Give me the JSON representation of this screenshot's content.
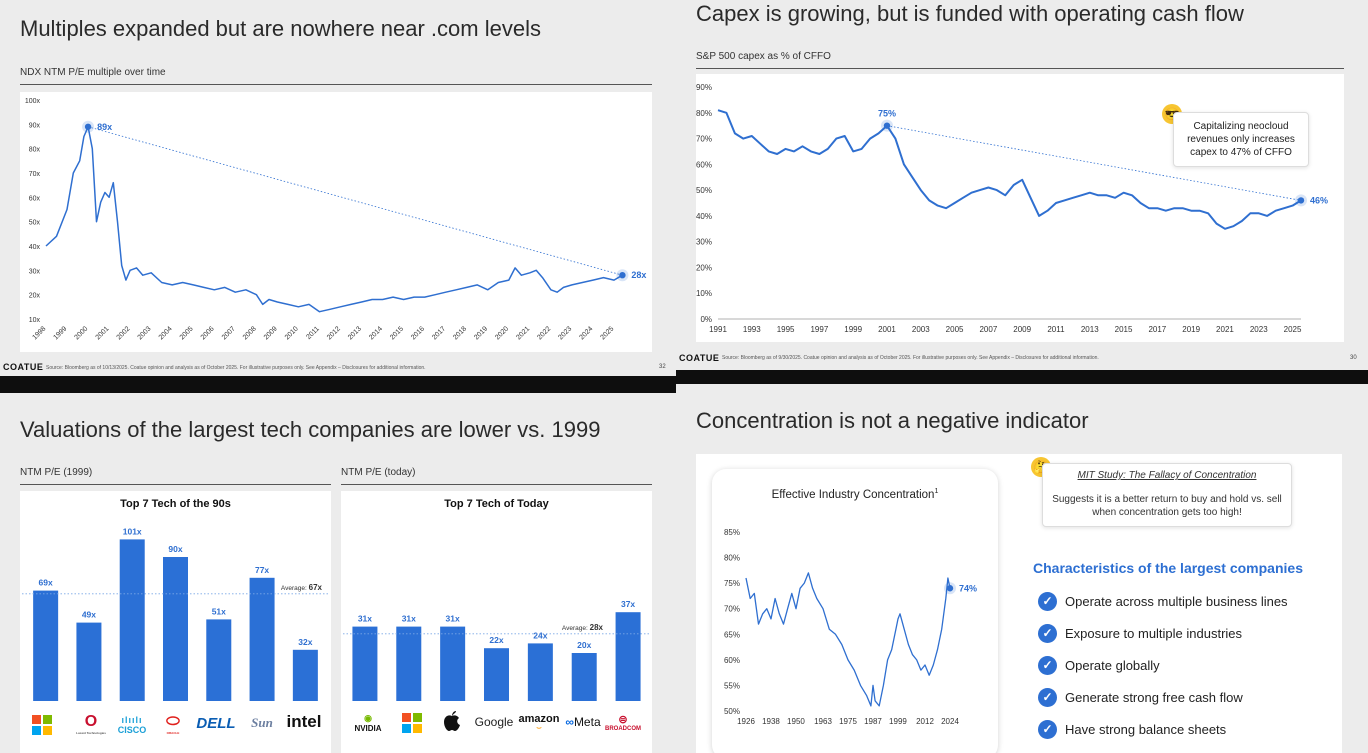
{
  "colors": {
    "line": "#2f6fd0",
    "bar": "#2b70d6",
    "label": "#2f6fd0"
  },
  "p1": {
    "title": "Multiples expanded but are nowhere near .com levels",
    "subtitle": "NDX NTM P/E multiple over time",
    "brand": "COATUE",
    "footer": "Source: Bloomberg as of 10/13/2025. Coatue opinion and analysis as of October 2025. For illustrative purposes only. See Appendix – Disclosures for additional information.",
    "page": "32"
  },
  "p2": {
    "title": "Capex is growing, but is funded with operating cash flow",
    "subtitle": "S&P 500 capex as % of CFFO",
    "callout": "Capitalizing neocloud revenues only increases capex to 47% of CFFO",
    "emoji_icon": "sunglasses-face-icon",
    "brand": "COATUE",
    "footer": "Source: Bloomberg as of 9/30/2025. Coatue opinion and analysis as of October 2025. For illustrative purposes only. See Appendix – Disclosures for additional information.",
    "page": "30"
  },
  "p3": {
    "title": "Valuations of the largest tech companies are lower vs. 1999",
    "left_sub": "NTM P/E (1999)",
    "right_sub": "NTM P/E (today)",
    "logos90": [
      "Microsoft",
      "Lucent Technologies",
      "CISCO",
      "ORACLE",
      "DELL",
      "Sun",
      "intel"
    ],
    "logosToday": [
      "NVIDIA",
      "Microsoft",
      "Apple",
      "Google",
      "amazon",
      "Meta",
      "BROADCOM"
    ]
  },
  "p4": {
    "title": "Concentration is not a negative indicator",
    "callout_title": "MIT Study: The Fallacy of Concentration",
    "callout_text": "Suggests it is a better return to buy and hold vs. sell when concentration gets too high!",
    "emoji_icon": "thinking-face-icon",
    "char_title": "Characteristics of the largest companies",
    "items": [
      "Operate across multiple business lines",
      "Exposure to multiple industries",
      "Operate globally",
      "Generate strong free cash flow",
      "Have strong balance sheets"
    ]
  },
  "chart_data": [
    {
      "type": "line",
      "title": "NDX NTM P/E multiple over time",
      "x": [
        1998,
        1998.5,
        1999,
        1999.3,
        1999.6,
        1999.8,
        2000,
        2000.2,
        2000.4,
        2000.6,
        2000.8,
        2001,
        2001.2,
        2001.4,
        2001.6,
        2001.8,
        2002,
        2002.3,
        2002.6,
        2003,
        2003.5,
        2004,
        2004.5,
        2005,
        2005.5,
        2006,
        2006.5,
        2007,
        2007.5,
        2008,
        2008.3,
        2008.6,
        2009,
        2009.5,
        2010,
        2010.5,
        2011,
        2011.5,
        2012,
        2012.5,
        2013,
        2013.5,
        2014,
        2014.5,
        2015,
        2015.5,
        2016,
        2016.5,
        2017,
        2017.5,
        2018,
        2018.5,
        2019,
        2019.5,
        2020,
        2020.3,
        2020.6,
        2021,
        2021.3,
        2021.6,
        2022,
        2022.3,
        2022.6,
        2023,
        2023.5,
        2024,
        2024.5,
        2025,
        2025.4
      ],
      "y": [
        40,
        44,
        55,
        70,
        75,
        85,
        89,
        80,
        50,
        58,
        62,
        60,
        66,
        50,
        32,
        26,
        30,
        31,
        28,
        29,
        25,
        24,
        25,
        24,
        23,
        22,
        23,
        21,
        22,
        20,
        16,
        18,
        17,
        16,
        15,
        16,
        13,
        14,
        15,
        16,
        17,
        18,
        18,
        19,
        18,
        19,
        19,
        20,
        21,
        22,
        23,
        24,
        22,
        25,
        26,
        31,
        28,
        29,
        30,
        27,
        22,
        21,
        23,
        24,
        25,
        26,
        27,
        26,
        28
      ],
      "ylim": [
        10,
        100
      ],
      "yticks": [
        "10x",
        "20x",
        "30x",
        "40x",
        "50x",
        "60x",
        "70x",
        "80x",
        "90x",
        "100x"
      ],
      "xticks": [
        "1998",
        "1999",
        "2000",
        "2001",
        "2002",
        "2003",
        "2004",
        "2005",
        "2006",
        "2007",
        "2008",
        "2009",
        "2010",
        "2011",
        "2012",
        "2013",
        "2014",
        "2015",
        "2016",
        "2017",
        "2018",
        "2019",
        "2020",
        "2021",
        "2022",
        "2023",
        "2024",
        "2025"
      ],
      "annotations": [
        "89x",
        "28x"
      ]
    },
    {
      "type": "line",
      "title": "S&P 500 capex as % of CFFO",
      "x": [
        1991,
        1991.5,
        1992,
        1992.5,
        1993,
        1993.5,
        1994,
        1994.5,
        1995,
        1995.5,
        1996,
        1996.5,
        1997,
        1997.5,
        1998,
        1998.5,
        1999,
        1999.5,
        2000,
        2000.5,
        2001,
        2001.5,
        2002,
        2002.5,
        2003,
        2003.5,
        2004,
        2004.5,
        2005,
        2005.5,
        2006,
        2006.5,
        2007,
        2007.5,
        2008,
        2008.5,
        2009,
        2009.5,
        2010,
        2010.5,
        2011,
        2011.5,
        2012,
        2012.5,
        2013,
        2013.5,
        2014,
        2014.5,
        2015,
        2015.5,
        2016,
        2016.5,
        2017,
        2017.5,
        2018,
        2018.5,
        2019,
        2019.5,
        2020,
        2020.5,
        2021,
        2021.5,
        2022,
        2022.5,
        2023,
        2023.5,
        2024,
        2024.5,
        2025,
        2025.5
      ],
      "y": [
        81,
        80,
        72,
        70,
        71,
        68,
        65,
        64,
        66,
        65,
        67,
        65,
        64,
        66,
        70,
        71,
        65,
        66,
        70,
        72,
        75,
        70,
        60,
        55,
        50,
        46,
        44,
        43,
        45,
        47,
        49,
        50,
        51,
        50,
        48,
        52,
        54,
        47,
        40,
        42,
        45,
        46,
        47,
        48,
        49,
        48,
        48,
        47,
        49,
        48,
        45,
        43,
        43,
        42,
        43,
        43,
        42,
        42,
        41,
        37,
        35,
        36,
        38,
        41,
        41,
        40,
        42,
        43,
        44,
        46
      ],
      "ylim": [
        0,
        90
      ],
      "yticks": [
        "0%",
        "10%",
        "20%",
        "30%",
        "40%",
        "50%",
        "60%",
        "70%",
        "80%",
        "90%"
      ],
      "xticks": [
        "1991",
        "1993",
        "1995",
        "1997",
        "1999",
        "2001",
        "2003",
        "2005",
        "2007",
        "2009",
        "2011",
        "2013",
        "2015",
        "2017",
        "2019",
        "2021",
        "2023",
        "2025"
      ],
      "annotations": [
        "75%",
        "46%"
      ]
    },
    {
      "type": "bar",
      "title": "Top 7 Tech of the 90s",
      "categories": [
        "Microsoft",
        "Lucent",
        "Cisco",
        "Oracle",
        "Dell",
        "Sun",
        "Intel"
      ],
      "values": [
        69,
        49,
        101,
        90,
        51,
        77,
        32
      ],
      "labels": [
        "69x",
        "49x",
        "101x",
        "90x",
        "51x",
        "77x",
        "32x"
      ],
      "average": 67,
      "average_label": "Average:",
      "average_value": "67x"
    },
    {
      "type": "bar",
      "title": "Top 7 Tech of Today",
      "categories": [
        "Nvidia",
        "Microsoft",
        "Apple",
        "Google",
        "Amazon",
        "Meta",
        "Broadcom"
      ],
      "values": [
        31,
        31,
        31,
        22,
        24,
        20,
        37
      ],
      "labels": [
        "31x",
        "31x",
        "31x",
        "22x",
        "24x",
        "20x",
        "37x"
      ],
      "average": 28,
      "average_label": "Average:",
      "average_value": "28x"
    },
    {
      "type": "line",
      "title": "Effective Industry Concentration",
      "title_sup": "1",
      "x": [
        1926,
        1928,
        1930,
        1932,
        1934,
        1936,
        1938,
        1940,
        1942,
        1944,
        1946,
        1948,
        1950,
        1952,
        1954,
        1956,
        1958,
        1960,
        1963,
        1966,
        1969,
        1972,
        1975,
        1978,
        1981,
        1984,
        1986,
        1987,
        1988,
        1990,
        1992,
        1994,
        1996,
        1998,
        1999,
        2000,
        2002,
        2004,
        2006,
        2008,
        2010,
        2012,
        2014,
        2016,
        2018,
        2020,
        2022,
        2023,
        2024
      ],
      "y": [
        76,
        72,
        73,
        67,
        69,
        70,
        68,
        72,
        69,
        67,
        70,
        73,
        70,
        74,
        75,
        77,
        74,
        72,
        70,
        66,
        65,
        63,
        60,
        58,
        55,
        53,
        51,
        55,
        52,
        51,
        55,
        60,
        62,
        66,
        68,
        69,
        66,
        63,
        61,
        60,
        58,
        59,
        57,
        59,
        62,
        66,
        72,
        76,
        74
      ],
      "ylim": [
        50,
        85
      ],
      "yticks": [
        "50%",
        "55%",
        "60%",
        "65%",
        "70%",
        "75%",
        "80%",
        "85%"
      ],
      "xticks": [
        "1926",
        "1938",
        "1950",
        "1963",
        "1975",
        "1987",
        "1999",
        "2012",
        "2024"
      ],
      "annotations": [
        "74%"
      ]
    }
  ]
}
